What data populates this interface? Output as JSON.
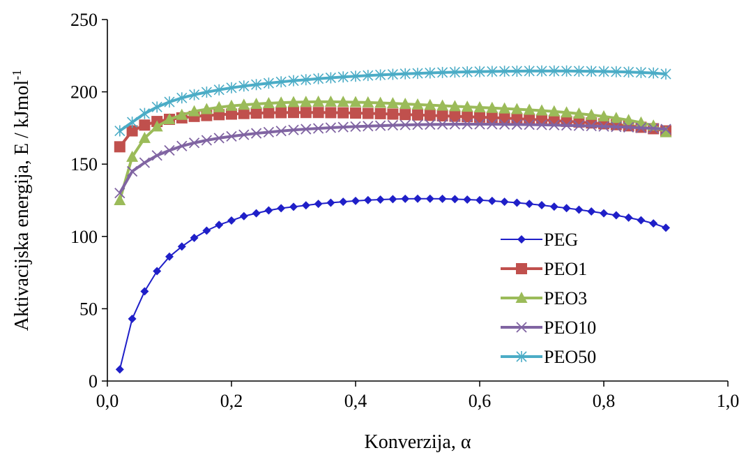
{
  "chart_data": {
    "type": "line",
    "xlabel": "Konverzija, α",
    "ylabel": "Aktivacijska energija, E / kJmol",
    "ylabel_sup": "-1",
    "xlim": [
      0,
      1.0
    ],
    "ylim": [
      0,
      250
    ],
    "x_ticks": [
      0,
      0.2,
      0.4,
      0.6,
      0.8,
      1.0
    ],
    "x_tick_labels": [
      "0,0",
      "0,2",
      "0,4",
      "0,6",
      "0,8",
      "1,0"
    ],
    "y_ticks": [
      0,
      50,
      100,
      150,
      200,
      250
    ],
    "y_tick_labels": [
      "0",
      "50",
      "100",
      "150",
      "200",
      "250"
    ],
    "grid": false,
    "legend_position": "bottom-right",
    "x": [
      0.02,
      0.04,
      0.06,
      0.08,
      0.1,
      0.12,
      0.14,
      0.16,
      0.18,
      0.2,
      0.22,
      0.24,
      0.26,
      0.28,
      0.3,
      0.32,
      0.34,
      0.36,
      0.38,
      0.4,
      0.42,
      0.44,
      0.46,
      0.48,
      0.5,
      0.52,
      0.54,
      0.56,
      0.58,
      0.6,
      0.62,
      0.64,
      0.66,
      0.68,
      0.7,
      0.72,
      0.74,
      0.76,
      0.78,
      0.8,
      0.82,
      0.84,
      0.86,
      0.88,
      0.9
    ],
    "series": [
      {
        "name": "PEG",
        "color": "#1f1fc8",
        "marker": "diamond",
        "values": [
          8,
          43,
          62,
          76,
          86,
          93,
          99,
          104,
          108,
          111,
          114,
          116,
          118,
          119.5,
          120.5,
          121.5,
          122.5,
          123.3,
          124,
          124.6,
          125.1,
          125.5,
          125.8,
          126,
          126.1,
          126.1,
          126,
          125.8,
          125.5,
          125.1,
          124.6,
          124,
          123.3,
          122.5,
          121.6,
          120.6,
          119.6,
          118.5,
          117.3,
          116,
          114.6,
          113,
          111.2,
          109,
          106
        ]
      },
      {
        "name": "PEO1",
        "color": "#c0504d",
        "marker": "square",
        "values": [
          162,
          173,
          177,
          179.5,
          181,
          182,
          183,
          183.6,
          184.2,
          184.6,
          185,
          185.3,
          185.5,
          185.6,
          185.7,
          185.7,
          185.7,
          185.6,
          185.5,
          185.3,
          185.1,
          184.9,
          184.6,
          184.3,
          184,
          183.7,
          183.4,
          183.1,
          182.8,
          182.5,
          182.2,
          181.8,
          181.4,
          181,
          180.6,
          180.1,
          179.6,
          179.1,
          178.5,
          177.9,
          177.3,
          176.5,
          175.5,
          174.5,
          173
        ]
      },
      {
        "name": "PEO3",
        "color": "#9bbb59",
        "marker": "triangle",
        "values": [
          125,
          155,
          168,
          176,
          181,
          184,
          186.5,
          188,
          189.3,
          190.3,
          191,
          191.6,
          192.1,
          192.5,
          192.8,
          193,
          193.1,
          193.1,
          193,
          192.8,
          192.6,
          192.3,
          192,
          191.6,
          191.2,
          190.8,
          190.4,
          190,
          189.6,
          189.2,
          188.8,
          188.4,
          188,
          187.5,
          187,
          186.4,
          185.7,
          184.9,
          184,
          183,
          181.8,
          180.4,
          178.7,
          176.6,
          172
        ]
      },
      {
        "name": "PEO10",
        "color": "#8064a2",
        "marker": "x",
        "values": [
          130,
          145,
          151,
          156,
          159.5,
          162.5,
          164.7,
          166.5,
          168,
          169.2,
          170.3,
          171.3,
          172.1,
          172.9,
          173.6,
          174.2,
          174.7,
          175.2,
          175.6,
          176,
          176.3,
          176.6,
          176.9,
          177.1,
          177.3,
          177.4,
          177.5,
          177.6,
          177.6,
          177.6,
          177.6,
          177.5,
          177.4,
          177.3,
          177.2,
          177,
          176.8,
          176.6,
          176.4,
          176.1,
          175.8,
          175.5,
          175.1,
          174.7,
          174.2
        ]
      },
      {
        "name": "PEO50",
        "color": "#4bacc6",
        "marker": "star",
        "values": [
          173,
          179,
          185,
          189.5,
          193,
          195.8,
          198,
          199.8,
          201.4,
          202.8,
          204,
          205,
          206,
          206.9,
          207.7,
          208.4,
          209.1,
          209.7,
          210.3,
          210.8,
          211.3,
          211.7,
          212.1,
          212.5,
          212.8,
          213.1,
          213.4,
          213.6,
          213.8,
          214,
          214.1,
          214.2,
          214.3,
          214.4,
          214.4,
          214.4,
          214.4,
          214.3,
          214.2,
          214.1,
          213.9,
          213.7,
          213.4,
          213,
          212.3
        ]
      }
    ]
  }
}
